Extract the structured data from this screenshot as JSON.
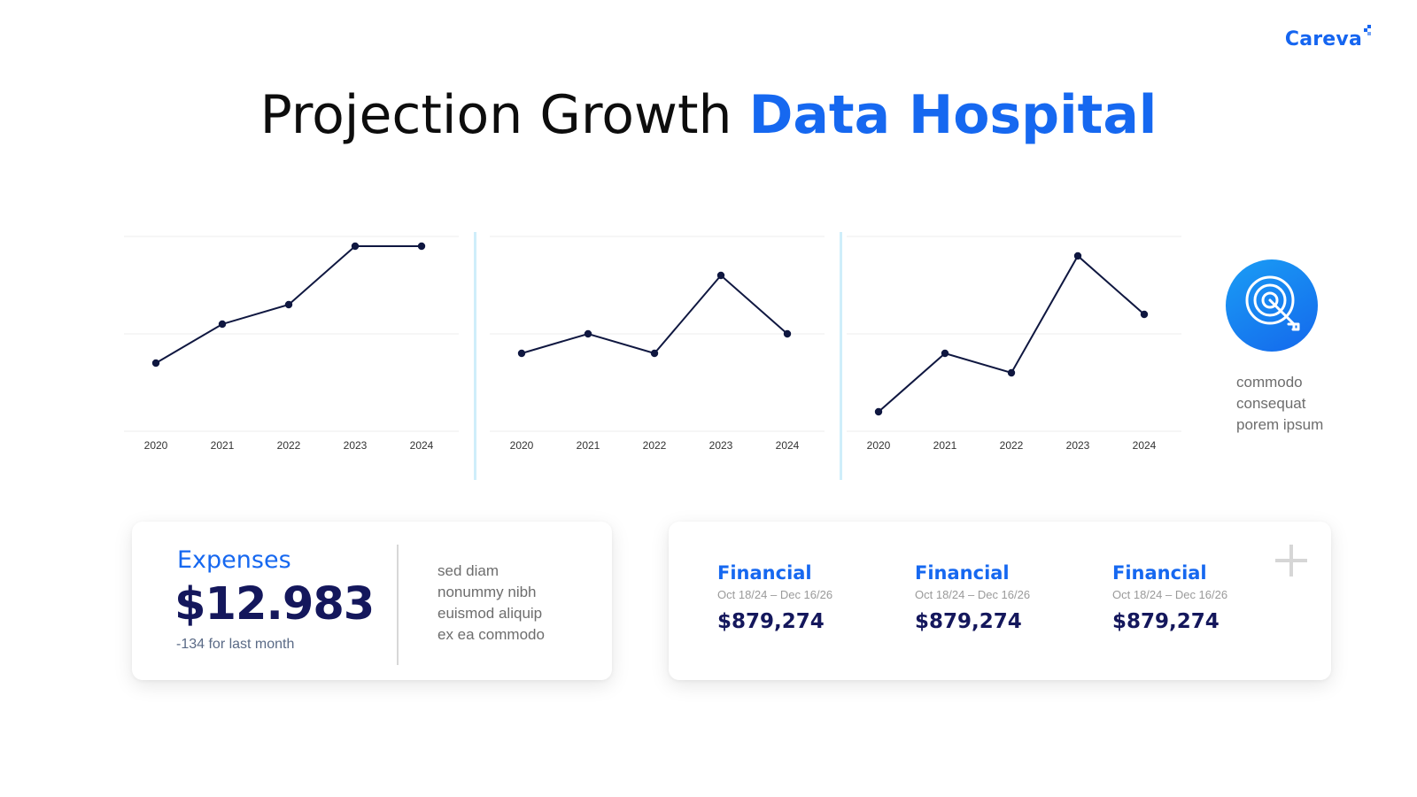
{
  "brand": {
    "name": "Careva",
    "color": "#1565f0"
  },
  "header": {
    "title_plain": "Projection Growth",
    "title_highlight": "Data Hospital"
  },
  "chart_data": [
    {
      "type": "line",
      "categories": [
        "2020",
        "2021",
        "2022",
        "2023",
        "2024"
      ],
      "values": [
        35,
        55,
        65,
        95,
        95
      ],
      "ylim": [
        0,
        100
      ],
      "grid": true,
      "color": "#0f1740"
    },
    {
      "type": "line",
      "categories": [
        "2020",
        "2021",
        "2022",
        "2023",
        "2024"
      ],
      "values": [
        40,
        50,
        40,
        80,
        50
      ],
      "ylim": [
        0,
        100
      ],
      "grid": true,
      "color": "#0f1740"
    },
    {
      "type": "line",
      "categories": [
        "2020",
        "2021",
        "2022",
        "2023",
        "2024"
      ],
      "values": [
        10,
        40,
        30,
        90,
        60
      ],
      "ylim": [
        0,
        100
      ],
      "grid": true,
      "color": "#0f1740"
    }
  ],
  "goal": {
    "icon": "target-arrow-icon",
    "note_lines": [
      "commodo",
      "consequat",
      "porem ipsum"
    ]
  },
  "expenses": {
    "label": "Expenses",
    "value": "$12.983",
    "subtext": "-134 for last month",
    "note_lines": [
      "sed diam",
      "nonummy nibh",
      "euismod aliquip",
      "ex ea commodo"
    ]
  },
  "financial": {
    "items": [
      {
        "name": "Financial",
        "date_range": "Oct 18/24 – Dec 16/26",
        "value": "$879,274"
      },
      {
        "name": "Financial",
        "date_range": "Oct 18/24 – Dec 16/26",
        "value": "$879,274"
      },
      {
        "name": "Financial",
        "date_range": "Oct 18/24 – Dec 16/26",
        "value": "$879,274"
      }
    ],
    "action_icon": "plus-icon"
  }
}
